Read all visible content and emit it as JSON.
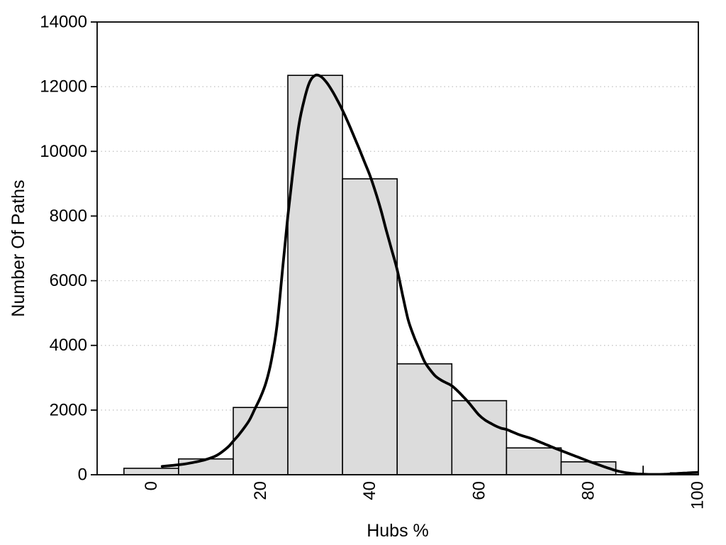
{
  "chart_data": {
    "type": "bar",
    "subtype": "histogram-with-density-curve",
    "title": "",
    "xlabel": "Hubs %",
    "ylabel": "Number Of Paths",
    "xlim": [
      -9.9,
      100.1
    ],
    "ylim": [
      0,
      14000
    ],
    "x_ticks": [
      0,
      20,
      40,
      60,
      80,
      100
    ],
    "y_ticks": [
      0,
      2000,
      4000,
      6000,
      8000,
      10000,
      12000,
      14000
    ],
    "gridlines_y": [
      2000,
      4000,
      6000,
      8000,
      10000,
      12000
    ],
    "grid_style": "horizontal dotted",
    "x_tick_label_rotation_deg": -90,
    "legend": "none",
    "bins": {
      "start": -5,
      "width": 10,
      "counts": [
        200,
        490,
        2080,
        12350,
        9150,
        3430,
        2290,
        830,
        400,
        0,
        60
      ]
    },
    "density_curve_points": [
      [
        2,
        260
      ],
      [
        4,
        290
      ],
      [
        6,
        330
      ],
      [
        8,
        390
      ],
      [
        10,
        470
      ],
      [
        12,
        600
      ],
      [
        14,
        850
      ],
      [
        15,
        1040
      ],
      [
        16,
        1230
      ],
      [
        17,
        1450
      ],
      [
        18,
        1700
      ],
      [
        19,
        2050
      ],
      [
        20,
        2400
      ],
      [
        21,
        2850
      ],
      [
        22,
        3550
      ],
      [
        23,
        4600
      ],
      [
        24,
        6300
      ],
      [
        25,
        8000
      ],
      [
        26,
        9500
      ],
      [
        27,
        10800
      ],
      [
        28,
        11600
      ],
      [
        29,
        12150
      ],
      [
        30,
        12350
      ],
      [
        31,
        12320
      ],
      [
        32,
        12150
      ],
      [
        33,
        11900
      ],
      [
        34,
        11600
      ],
      [
        35,
        11270
      ],
      [
        36,
        10900
      ],
      [
        37,
        10500
      ],
      [
        38,
        10100
      ],
      [
        39,
        9680
      ],
      [
        40,
        9260
      ],
      [
        41,
        8760
      ],
      [
        42,
        8200
      ],
      [
        43,
        7560
      ],
      [
        44,
        6950
      ],
      [
        45,
        6340
      ],
      [
        46,
        5550
      ],
      [
        47,
        4800
      ],
      [
        48,
        4300
      ],
      [
        49,
        3900
      ],
      [
        50,
        3500
      ],
      [
        51,
        3250
      ],
      [
        52,
        3050
      ],
      [
        53,
        2930
      ],
      [
        54,
        2840
      ],
      [
        55,
        2750
      ],
      [
        56,
        2600
      ],
      [
        57,
        2430
      ],
      [
        58,
        2250
      ],
      [
        59,
        2040
      ],
      [
        60,
        1840
      ],
      [
        61,
        1700
      ],
      [
        62,
        1600
      ],
      [
        63,
        1510
      ],
      [
        64,
        1440
      ],
      [
        65,
        1400
      ],
      [
        66,
        1330
      ],
      [
        67,
        1260
      ],
      [
        68,
        1200
      ],
      [
        69,
        1150
      ],
      [
        70,
        1090
      ],
      [
        71,
        1020
      ],
      [
        72,
        950
      ],
      [
        73,
        880
      ],
      [
        74,
        810
      ],
      [
        75,
        745
      ],
      [
        76,
        680
      ],
      [
        77,
        615
      ],
      [
        78,
        550
      ],
      [
        79,
        485
      ],
      [
        80,
        420
      ],
      [
        81,
        360
      ],
      [
        82,
        300
      ],
      [
        83,
        240
      ],
      [
        84,
        185
      ],
      [
        85,
        130
      ],
      [
        86,
        90
      ],
      [
        87,
        60
      ],
      [
        88,
        40
      ],
      [
        89,
        25
      ],
      [
        90,
        18
      ],
      [
        91,
        12
      ],
      [
        92,
        10
      ],
      [
        93,
        10
      ],
      [
        94,
        15
      ],
      [
        95,
        25
      ],
      [
        96,
        35
      ],
      [
        97,
        45
      ],
      [
        98,
        55
      ],
      [
        99,
        65
      ],
      [
        100,
        75
      ]
    ],
    "marker_tick": {
      "x": 90,
      "count": 280
    },
    "colors": {
      "bar_fill": "#dcdcdc",
      "bar_border": "#000000",
      "curve": "#000000",
      "gridline": "#c0c0c0",
      "axis": "#000000",
      "text": "#000000",
      "background": "#ffffff"
    }
  }
}
